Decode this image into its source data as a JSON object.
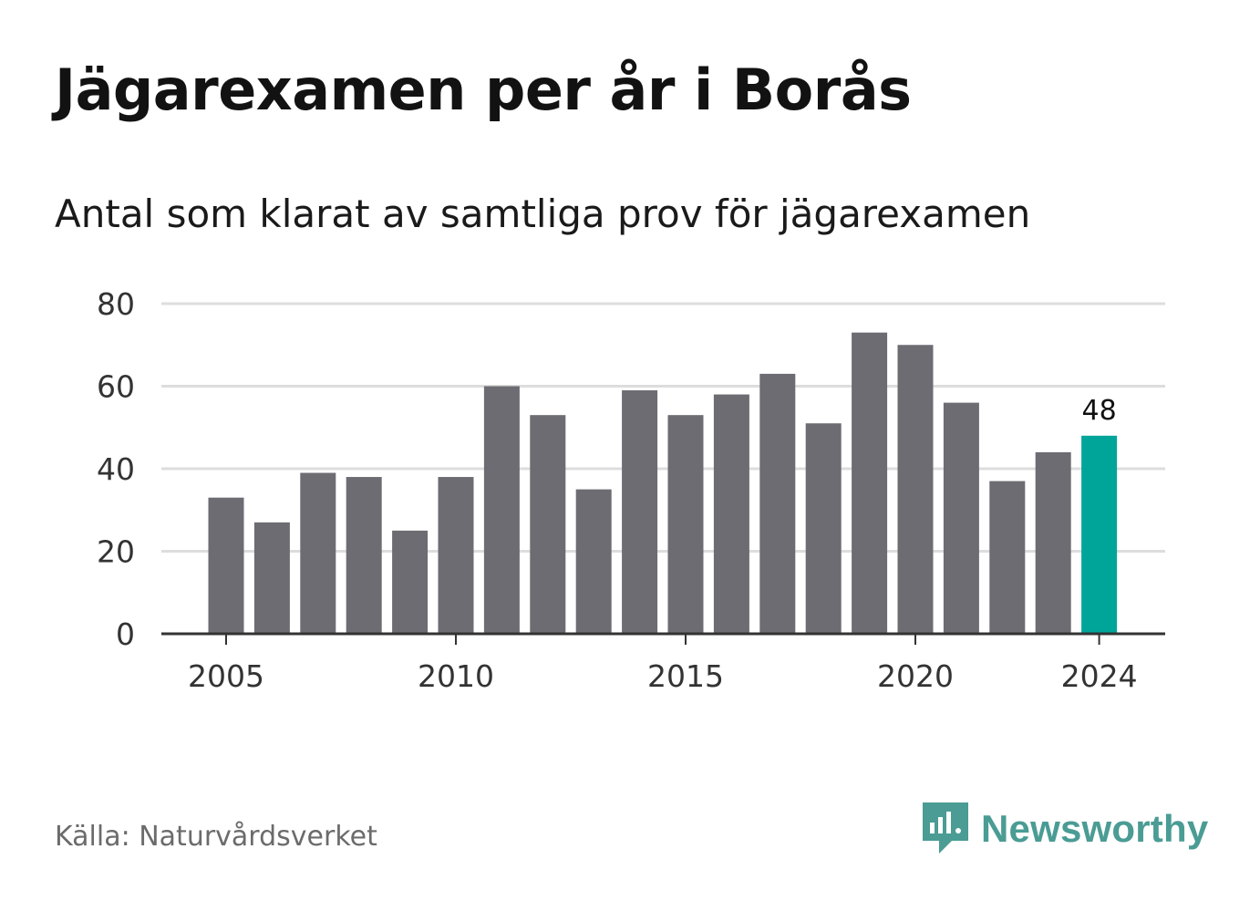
{
  "title": "Jägarexamen per år i Borås",
  "subtitle": "Antal som klarat av samtliga prov för jägarexamen",
  "source": "Källa: Naturvårdsverket",
  "brand": {
    "name": "Newsworthy",
    "icon": "newsworthy-logo-icon",
    "color": "#4a9c94"
  },
  "colors": {
    "bar": "#6d6c72",
    "highlight": "#00a59a",
    "grid": "#dddddd",
    "axis": "#333333",
    "tick_text": "#333333"
  },
  "chart_data": {
    "type": "bar",
    "categories": [
      "2005",
      "2006",
      "2007",
      "2008",
      "2009",
      "2010",
      "2011",
      "2012",
      "2013",
      "2014",
      "2015",
      "2016",
      "2017",
      "2018",
      "2019",
      "2020",
      "2021",
      "2022",
      "2023",
      "2024"
    ],
    "values": [
      33,
      27,
      39,
      38,
      25,
      38,
      60,
      53,
      35,
      59,
      53,
      58,
      63,
      51,
      73,
      70,
      56,
      37,
      44,
      48
    ],
    "highlight": {
      "category": "2024",
      "label": "48"
    },
    "x_tick_labels": [
      "2005",
      "2010",
      "2015",
      "2020",
      "2024"
    ],
    "y_ticks": [
      0,
      20,
      40,
      60,
      80
    ],
    "ylim": [
      0,
      80
    ],
    "grid": true,
    "legend": false,
    "xlabel": "",
    "ylabel": ""
  }
}
